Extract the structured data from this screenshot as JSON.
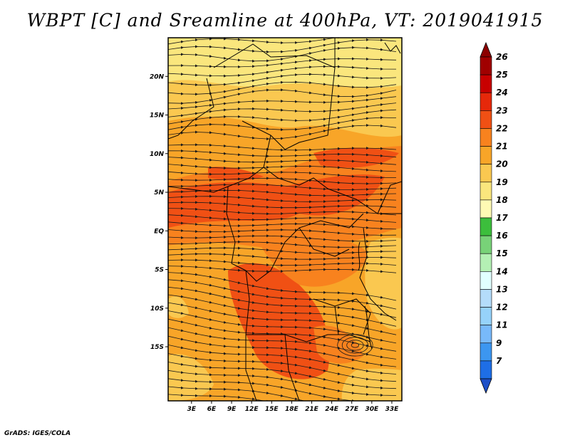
{
  "title": "WBPT [C] and Sreamline at 400hPa, VT: 2019041915",
  "credit": "GrADS: IGES/COLA",
  "map": {
    "lon_range": [
      -0.5,
      34.5
    ],
    "lat_range": [
      -22,
      25
    ],
    "lat_ticks": [
      {
        "value": 20,
        "label": "20N"
      },
      {
        "value": 15,
        "label": "15N"
      },
      {
        "value": 10,
        "label": "10N"
      },
      {
        "value": 5,
        "label": "5N"
      },
      {
        "value": 0,
        "label": "EQ"
      },
      {
        "value": -5,
        "label": "5S"
      },
      {
        "value": -10,
        "label": "10S"
      },
      {
        "value": -15,
        "label": "15S"
      }
    ],
    "lon_ticks": [
      {
        "value": 3,
        "label": "3E"
      },
      {
        "value": 6,
        "label": "6E"
      },
      {
        "value": 9,
        "label": "9E"
      },
      {
        "value": 12,
        "label": "12E"
      },
      {
        "value": 15,
        "label": "15E"
      },
      {
        "value": 18,
        "label": "18E"
      },
      {
        "value": 21,
        "label": "21E"
      },
      {
        "value": 24,
        "label": "24E"
      },
      {
        "value": 27,
        "label": "27E"
      },
      {
        "value": 30,
        "label": "30E"
      },
      {
        "value": 33,
        "label": "33E"
      }
    ]
  },
  "legend": {
    "levels": [
      {
        "label": "26",
        "color": "#a00000"
      },
      {
        "label": "25",
        "color": "#c80000"
      },
      {
        "label": "24",
        "color": "#e6280a"
      },
      {
        "label": "23",
        "color": "#f05014"
      },
      {
        "label": "22",
        "color": "#f8821e"
      },
      {
        "label": "21",
        "color": "#f8a528"
      },
      {
        "label": "20",
        "color": "#fac850"
      },
      {
        "label": "19",
        "color": "#fae67d"
      },
      {
        "label": "18",
        "color": "#fffab4"
      },
      {
        "label": "17",
        "color": "#3cbe3c"
      },
      {
        "label": "16",
        "color": "#78d278"
      },
      {
        "label": "15",
        "color": "#b4f0b4"
      },
      {
        "label": "14",
        "color": "#e1ffff"
      },
      {
        "label": "13",
        "color": "#b4dcfa"
      },
      {
        "label": "12",
        "color": "#96d2fa"
      },
      {
        "label": "11",
        "color": "#78b9fa"
      },
      {
        "label": "9",
        "color": "#3c96f0"
      },
      {
        "label": "7",
        "color": "#1e6ee6"
      }
    ],
    "top_color": "#8c0000",
    "bottom_color": "#1e50c8"
  }
}
